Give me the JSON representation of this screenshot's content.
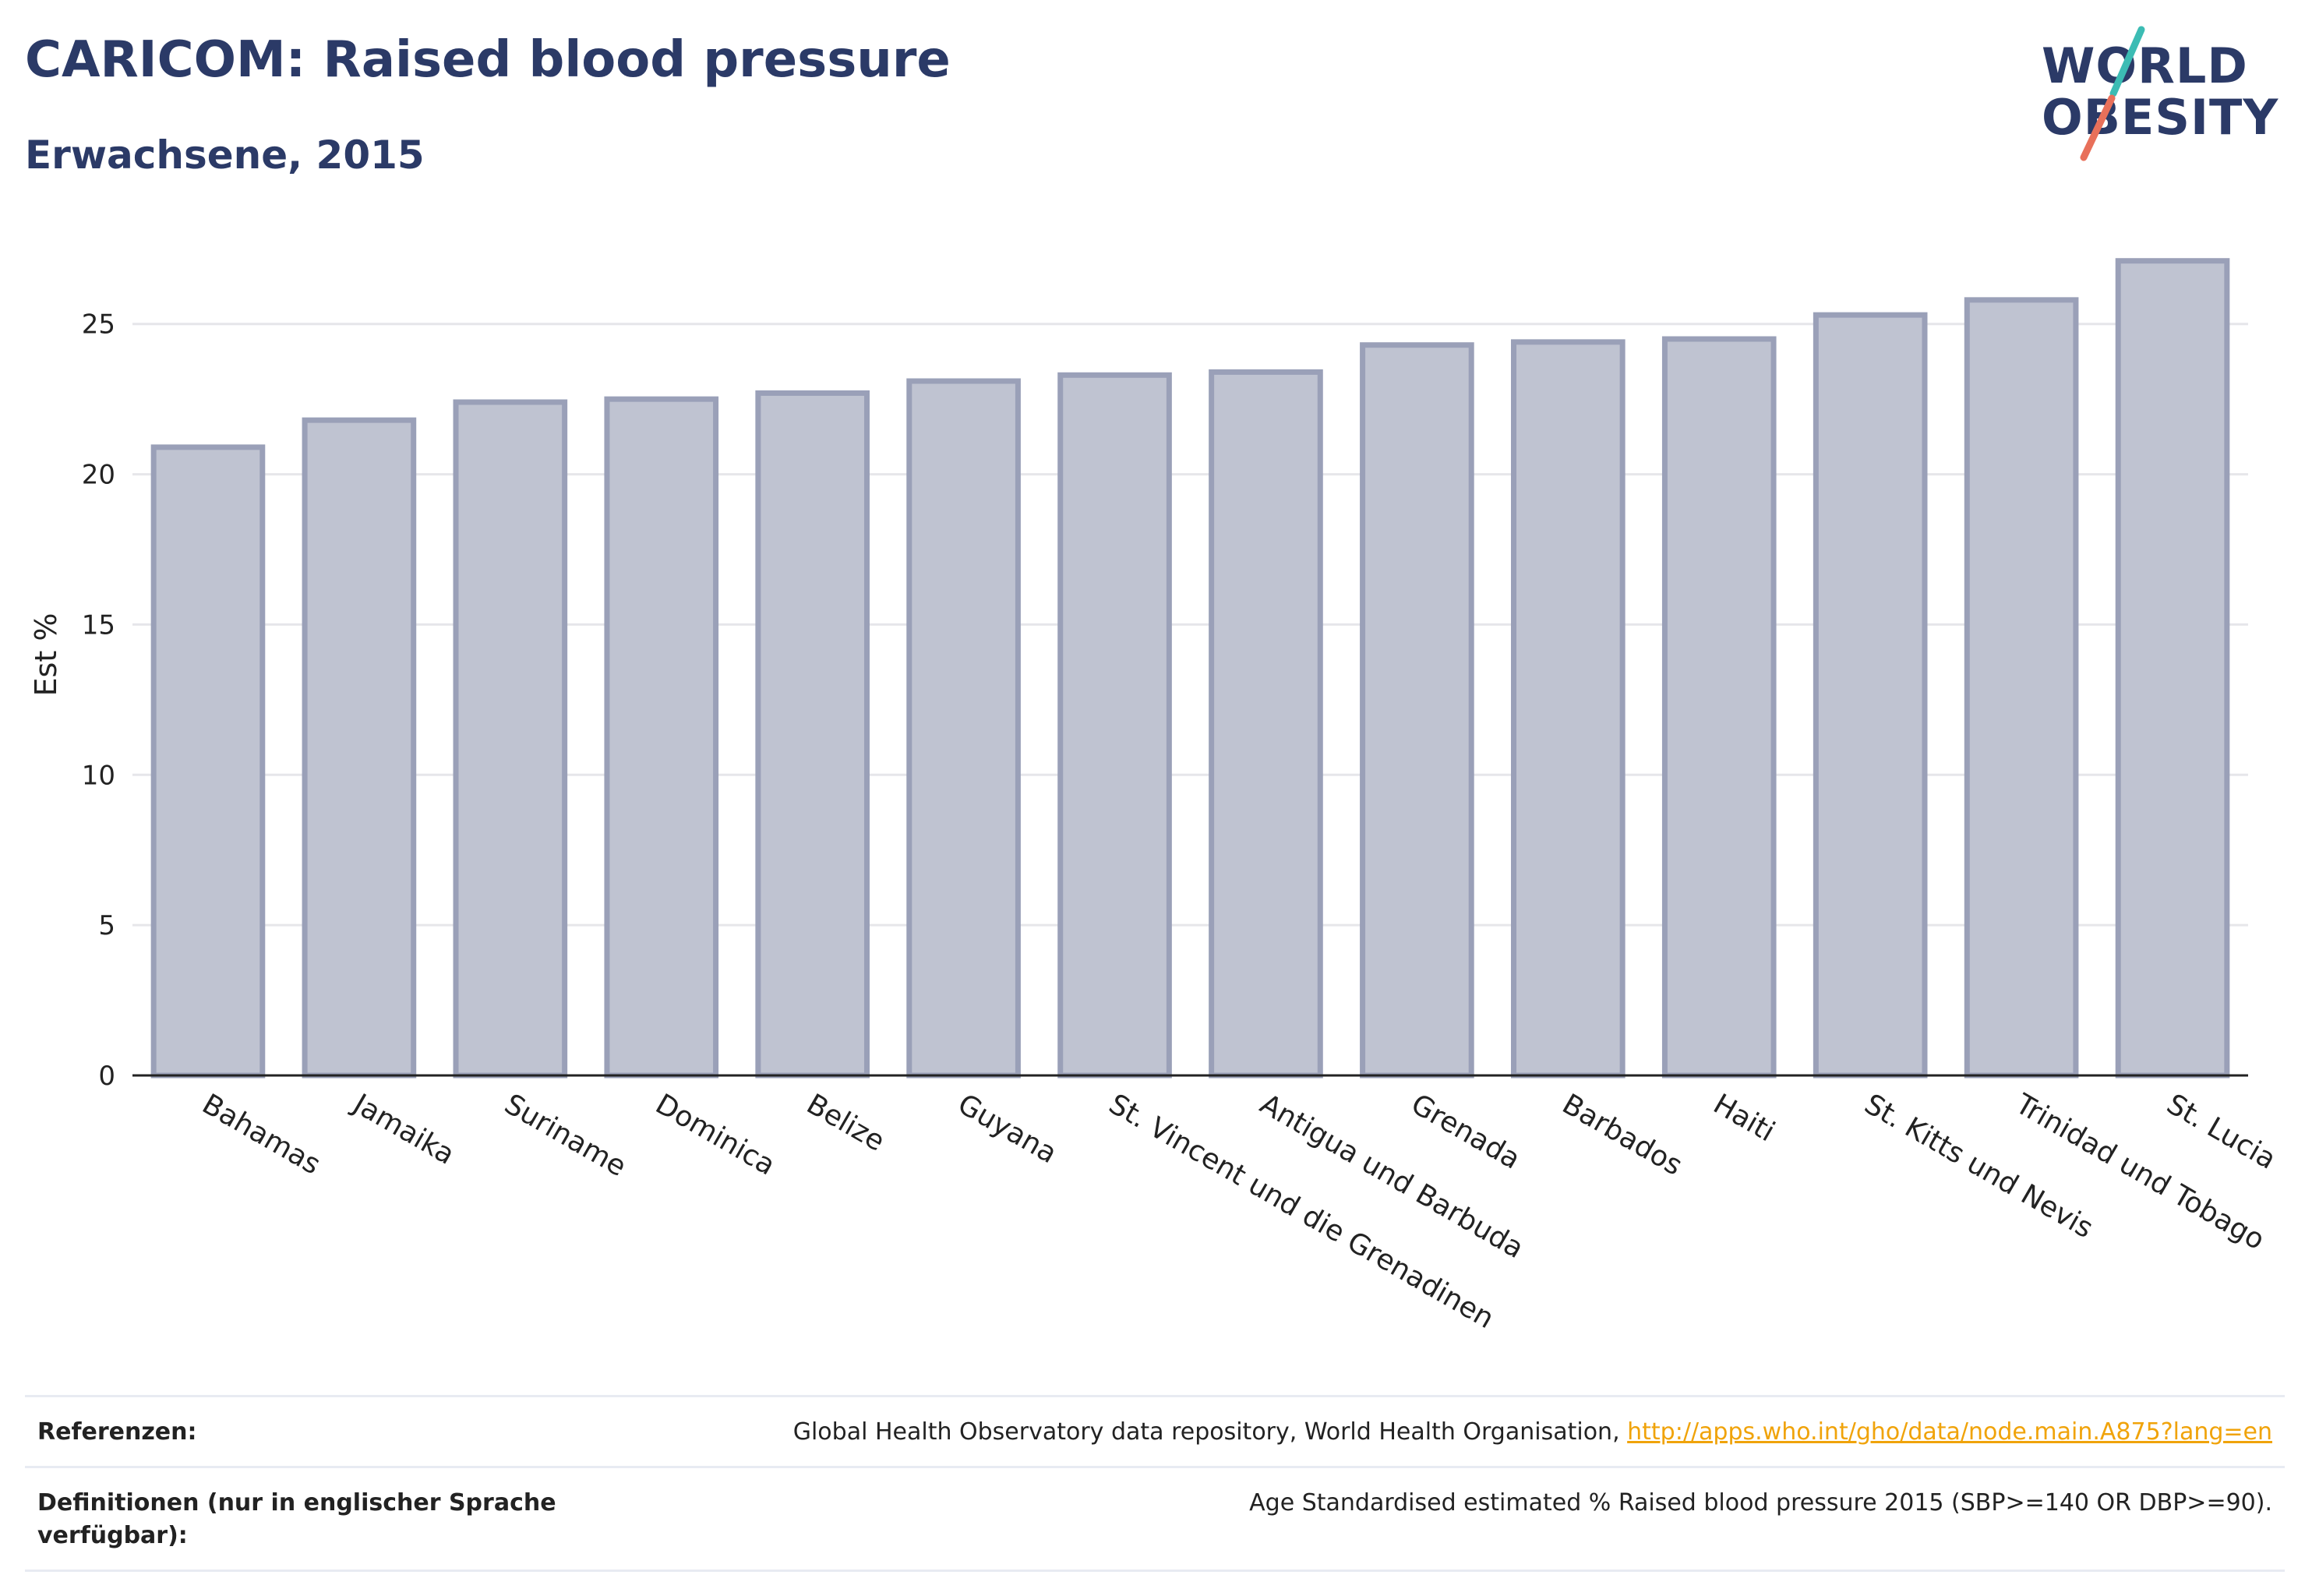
{
  "header": {
    "title": "CARICOM: Raised blood pressure",
    "subtitle": "Erwachsene, 2015"
  },
  "logo": {
    "line1": "WORLD",
    "line2": "OBESITY",
    "accent_teal": "#3cbcb4",
    "accent_coral": "#e8705a"
  },
  "chart_data": {
    "type": "bar",
    "title": "CARICOM: Raised blood pressure",
    "subtitle": "Erwachsene, 2015",
    "ylabel": "Est %",
    "xlabel": "",
    "ylim": [
      0,
      28
    ],
    "yticks": [
      0,
      5,
      10,
      15,
      20,
      25
    ],
    "grid": true,
    "bar_fill": "#bfc3d1",
    "bar_stroke": "#9aa0b8",
    "categories": [
      "Bahamas",
      "Jamaika",
      "Suriname",
      "Dominica",
      "Belize",
      "Guyana",
      "St. Vincent und die Grenadinen",
      "Antigua und Barbuda",
      "Grenada",
      "Barbados",
      "Haiti",
      "St. Kitts und Nevis",
      "Trinidad und Tobago",
      "St. Lucia"
    ],
    "values": [
      20.9,
      21.8,
      22.4,
      22.5,
      22.7,
      23.1,
      23.3,
      23.4,
      24.3,
      24.4,
      24.5,
      25.3,
      25.8,
      27.1
    ]
  },
  "references": {
    "refs_label": "Referenzen:",
    "refs_text": "Global Health Observatory data repository, World Health Organisation, ",
    "refs_link": "http://apps.who.int/gho/data/node.main.A875?lang=en",
    "defs_label": "Definitionen (nur in englischer Sprache verfügbar):",
    "defs_text": "Age Standardised estimated % Raised blood pressure 2015 (SBP>=140 OR DBP>=90)."
  }
}
